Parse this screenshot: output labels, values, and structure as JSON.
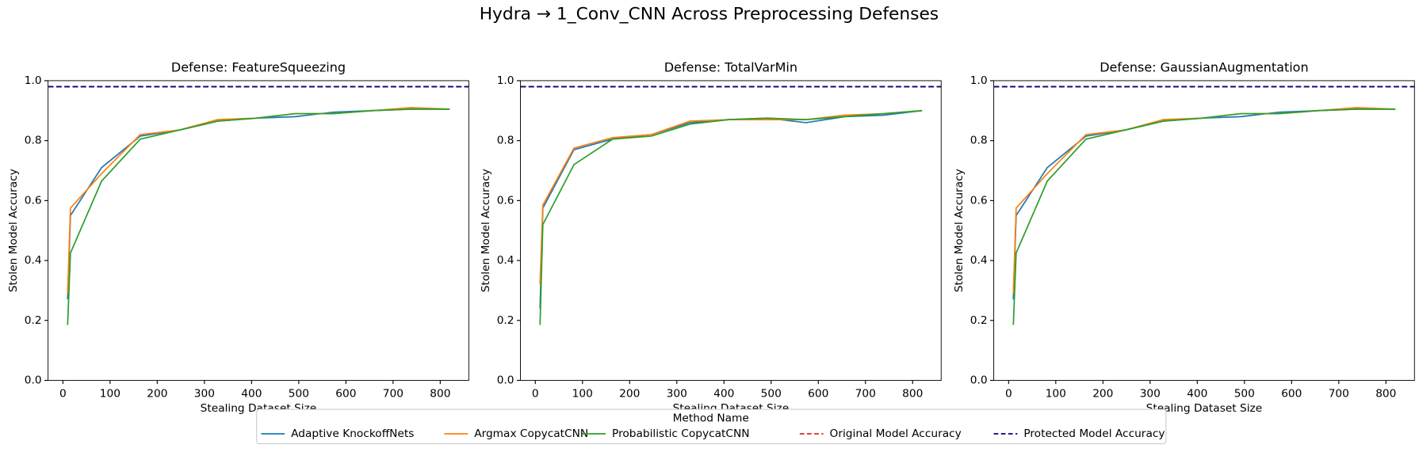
{
  "title": "Hydra → 1_Conv_CNN Across Preprocessing Defenses",
  "legend_title": "Method Name",
  "chart_data": [
    {
      "type": "line",
      "title": "Defense: FeatureSqueezing",
      "xlabel": "Stealing Dataset Size",
      "ylabel": "Stolen Model Accuracy",
      "x": [
        10,
        16,
        82,
        164,
        246,
        328,
        410,
        492,
        574,
        656,
        738,
        820
      ],
      "series": [
        {
          "name": "Adaptive KnockoffNets",
          "color": "#1f77b4",
          "values": [
            0.27,
            0.55,
            0.71,
            0.815,
            0.835,
            0.865,
            0.875,
            0.88,
            0.895,
            0.9,
            0.905,
            0.905
          ]
        },
        {
          "name": "Argmax CopycatCNN",
          "color": "#ff7f0e",
          "values": [
            0.29,
            0.575,
            0.69,
            0.82,
            0.835,
            0.87,
            0.875,
            0.89,
            0.89,
            0.9,
            0.91,
            0.905
          ]
        },
        {
          "name": "Probabilistic CopycatCNN",
          "color": "#2ca02c",
          "values": [
            0.185,
            0.425,
            0.665,
            0.805,
            0.835,
            0.865,
            0.875,
            0.89,
            0.89,
            0.9,
            0.905,
            0.905
          ]
        }
      ],
      "reference_lines": [
        {
          "name": "Original Model Accuracy",
          "color": "#d62728",
          "value": 0.98
        },
        {
          "name": "Protected Model Accuracy",
          "color": "#000080",
          "value": 0.98
        }
      ],
      "xlim": [
        -31.5,
        860.5
      ],
      "xticks": [
        0,
        100,
        200,
        300,
        400,
        500,
        600,
        700,
        800
      ],
      "ylim": [
        0,
        1
      ],
      "yticks": [
        {
          "value": 0,
          "label": "0.0"
        },
        0.2,
        0.4,
        0.6,
        0.8,
        {
          "value": 1,
          "label": "1.0"
        }
      ]
    },
    {
      "type": "line",
      "title": "Defense: TotalVarMin",
      "xlabel": "Stealing Dataset Size",
      "ylabel": "Stolen Model Accuracy",
      "x": [
        10,
        16,
        82,
        164,
        246,
        328,
        410,
        492,
        574,
        656,
        738,
        820
      ],
      "series": [
        {
          "name": "Adaptive KnockoffNets",
          "color": "#1f77b4",
          "values": [
            0.24,
            0.575,
            0.77,
            0.805,
            0.82,
            0.86,
            0.87,
            0.875,
            0.86,
            0.88,
            0.885,
            0.9
          ]
        },
        {
          "name": "Argmax CopycatCNN",
          "color": "#ff7f0e",
          "values": [
            0.32,
            0.585,
            0.775,
            0.81,
            0.82,
            0.865,
            0.87,
            0.87,
            0.87,
            0.885,
            0.89,
            0.9
          ]
        },
        {
          "name": "Probabilistic CopycatCNN",
          "color": "#2ca02c",
          "values": [
            0.185,
            0.52,
            0.72,
            0.805,
            0.815,
            0.855,
            0.87,
            0.875,
            0.87,
            0.88,
            0.89,
            0.9
          ]
        }
      ],
      "reference_lines": [
        {
          "name": "Original Model Accuracy",
          "color": "#d62728",
          "value": 0.98
        },
        {
          "name": "Protected Model Accuracy",
          "color": "#000080",
          "value": 0.98
        }
      ],
      "xlim": [
        -31.5,
        860.5
      ],
      "xticks": [
        0,
        100,
        200,
        300,
        400,
        500,
        600,
        700,
        800
      ],
      "ylim": [
        0,
        1
      ],
      "yticks": [
        {
          "value": 0,
          "label": "0.0"
        },
        0.2,
        0.4,
        0.6,
        0.8,
        {
          "value": 1,
          "label": "1.0"
        }
      ]
    },
    {
      "type": "line",
      "title": "Defense: GaussianAugmentation",
      "xlabel": "Stealing Dataset Size",
      "ylabel": "Stolen Model Accuracy",
      "x": [
        10,
        16,
        82,
        164,
        246,
        328,
        410,
        492,
        574,
        656,
        738,
        820
      ],
      "series": [
        {
          "name": "Adaptive KnockoffNets",
          "color": "#1f77b4",
          "values": [
            0.27,
            0.55,
            0.71,
            0.815,
            0.835,
            0.865,
            0.875,
            0.88,
            0.895,
            0.9,
            0.905,
            0.905
          ]
        },
        {
          "name": "Argmax CopycatCNN",
          "color": "#ff7f0e",
          "values": [
            0.29,
            0.575,
            0.69,
            0.82,
            0.835,
            0.87,
            0.875,
            0.89,
            0.89,
            0.9,
            0.91,
            0.905
          ]
        },
        {
          "name": "Probabilistic CopycatCNN",
          "color": "#2ca02c",
          "values": [
            0.185,
            0.425,
            0.665,
            0.805,
            0.835,
            0.865,
            0.875,
            0.89,
            0.89,
            0.9,
            0.905,
            0.905
          ]
        }
      ],
      "reference_lines": [
        {
          "name": "Original Model Accuracy",
          "color": "#d62728",
          "value": 0.98
        },
        {
          "name": "Protected Model Accuracy",
          "color": "#000080",
          "value": 0.98
        }
      ],
      "xlim": [
        -31.5,
        860.5
      ],
      "xticks": [
        0,
        100,
        200,
        300,
        400,
        500,
        600,
        700,
        800
      ],
      "ylim": [
        0,
        1
      ],
      "yticks": [
        {
          "value": 0,
          "label": "0.0"
        },
        0.2,
        0.4,
        0.6,
        0.8,
        {
          "value": 1,
          "label": "1.0"
        }
      ]
    }
  ]
}
